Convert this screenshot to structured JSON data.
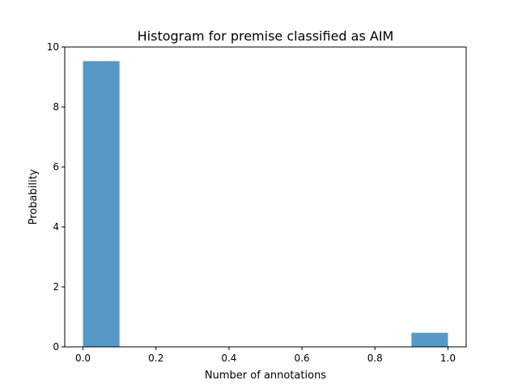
{
  "chart_data": {
    "type": "bar",
    "title": "Histogram for premise classified as AIM",
    "xlabel": "Number of annotations",
    "ylabel": "Probability",
    "xlim": [
      -0.05,
      1.05
    ],
    "ylim": [
      0,
      10
    ],
    "x_ticks": [
      0.0,
      0.2,
      0.4,
      0.6,
      0.8,
      1.0
    ],
    "x_tick_labels": [
      "0.0",
      "0.2",
      "0.4",
      "0.6",
      "0.8",
      "1.0"
    ],
    "y_ticks": [
      0,
      2,
      4,
      6,
      8,
      10
    ],
    "y_tick_labels": [
      "0",
      "2",
      "4",
      "6",
      "8",
      "10"
    ],
    "bars": [
      {
        "x0": 0.0,
        "x1": 0.1,
        "value": 9.53
      },
      {
        "x0": 0.1,
        "x1": 0.2,
        "value": 0
      },
      {
        "x0": 0.2,
        "x1": 0.3,
        "value": 0
      },
      {
        "x0": 0.3,
        "x1": 0.4,
        "value": 0
      },
      {
        "x0": 0.4,
        "x1": 0.5,
        "value": 0
      },
      {
        "x0": 0.5,
        "x1": 0.6,
        "value": 0
      },
      {
        "x0": 0.6,
        "x1": 0.7,
        "value": 0
      },
      {
        "x0": 0.7,
        "x1": 0.8,
        "value": 0
      },
      {
        "x0": 0.8,
        "x1": 0.9,
        "value": 0
      },
      {
        "x0": 0.9,
        "x1": 1.0,
        "value": 0.47
      }
    ],
    "bar_color": "#5599c7",
    "grid": false,
    "legend": "none"
  }
}
